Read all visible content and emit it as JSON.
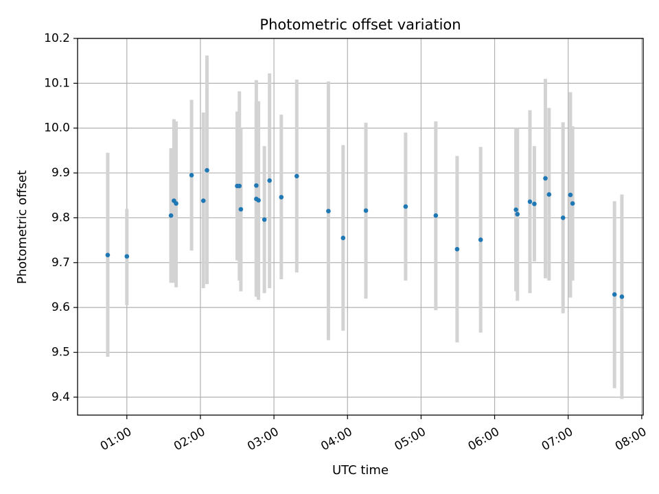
{
  "chart_data": {
    "type": "scatter",
    "title": "Photometric offset variation",
    "xlabel": "UTC time",
    "ylabel": "Photometric offset",
    "xlim_hours": [
      0.33,
      8.02
    ],
    "ylim": [
      9.36,
      10.2
    ],
    "x_ticks": [
      {
        "value": 1,
        "label": "01:00"
      },
      {
        "value": 2,
        "label": "02:00"
      },
      {
        "value": 3,
        "label": "03:00"
      },
      {
        "value": 4,
        "label": "04:00"
      },
      {
        "value": 5,
        "label": "05:00"
      },
      {
        "value": 6,
        "label": "06:00"
      },
      {
        "value": 7,
        "label": "07:00"
      },
      {
        "value": 8,
        "label": "08:00"
      }
    ],
    "y_ticks": [
      {
        "value": 9.4,
        "label": "9.4"
      },
      {
        "value": 9.5,
        "label": "9.5"
      },
      {
        "value": 9.6,
        "label": "9.6"
      },
      {
        "value": 9.7,
        "label": "9.7"
      },
      {
        "value": 9.8,
        "label": "9.8"
      },
      {
        "value": 9.9,
        "label": "9.9"
      },
      {
        "value": 10.0,
        "label": "10.0"
      },
      {
        "value": 10.1,
        "label": "10.1"
      },
      {
        "value": 10.2,
        "label": "10.2"
      }
    ],
    "grid": true,
    "point_color": "#1f77b4",
    "errorbar_color": "#d3d3d3",
    "grid_color": "#b0b0b0",
    "series": [
      {
        "name": "photometric offset",
        "points": [
          {
            "x": 0.74,
            "y": 9.717,
            "err_low": 9.49,
            "err_high": 9.945
          },
          {
            "x": 1.0,
            "y": 9.714,
            "err_low": 9.605,
            "err_high": 9.82
          },
          {
            "x": 1.6,
            "y": 9.805,
            "err_low": 9.655,
            "err_high": 9.955
          },
          {
            "x": 1.64,
            "y": 9.838,
            "err_low": 9.655,
            "err_high": 10.02
          },
          {
            "x": 1.67,
            "y": 9.832,
            "err_low": 9.645,
            "err_high": 10.015
          },
          {
            "x": 1.88,
            "y": 9.895,
            "err_low": 9.727,
            "err_high": 10.063
          },
          {
            "x": 2.04,
            "y": 9.838,
            "err_low": 9.643,
            "err_high": 10.035
          },
          {
            "x": 2.09,
            "y": 9.906,
            "err_low": 9.652,
            "err_high": 10.162
          },
          {
            "x": 2.5,
            "y": 9.871,
            "err_low": 9.705,
            "err_high": 10.037
          },
          {
            "x": 2.53,
            "y": 9.871,
            "err_low": 9.66,
            "err_high": 10.082
          },
          {
            "x": 2.55,
            "y": 9.819,
            "err_low": 9.636,
            "err_high": 10.0
          },
          {
            "x": 2.76,
            "y": 9.872,
            "err_low": 9.627,
            "err_high": 10.107
          },
          {
            "x": 2.76,
            "y": 9.842,
            "err_low": 9.624,
            "err_high": 10.06
          },
          {
            "x": 2.79,
            "y": 9.839,
            "err_low": 9.617,
            "err_high": 10.06
          },
          {
            "x": 2.87,
            "y": 9.796,
            "err_low": 9.632,
            "err_high": 9.96
          },
          {
            "x": 2.94,
            "y": 9.883,
            "err_low": 9.643,
            "err_high": 10.122
          },
          {
            "x": 3.1,
            "y": 9.846,
            "err_low": 9.663,
            "err_high": 10.03
          },
          {
            "x": 3.31,
            "y": 9.893,
            "err_low": 9.678,
            "err_high": 10.108
          },
          {
            "x": 3.74,
            "y": 9.815,
            "err_low": 9.527,
            "err_high": 10.104
          },
          {
            "x": 3.94,
            "y": 9.755,
            "err_low": 9.548,
            "err_high": 9.962
          },
          {
            "x": 4.25,
            "y": 9.816,
            "err_low": 9.62,
            "err_high": 10.012
          },
          {
            "x": 4.79,
            "y": 9.825,
            "err_low": 9.66,
            "err_high": 9.99
          },
          {
            "x": 5.2,
            "y": 9.805,
            "err_low": 9.594,
            "err_high": 10.015
          },
          {
            "x": 5.49,
            "y": 9.73,
            "err_low": 9.522,
            "err_high": 9.938
          },
          {
            "x": 5.81,
            "y": 9.751,
            "err_low": 9.544,
            "err_high": 9.958
          },
          {
            "x": 6.29,
            "y": 9.818,
            "err_low": 9.636,
            "err_high": 10.0
          },
          {
            "x": 6.31,
            "y": 9.808,
            "err_low": 9.615,
            "err_high": 10.0
          },
          {
            "x": 6.48,
            "y": 9.836,
            "err_low": 9.632,
            "err_high": 10.04
          },
          {
            "x": 6.54,
            "y": 9.831,
            "err_low": 9.703,
            "err_high": 9.96
          },
          {
            "x": 6.69,
            "y": 9.888,
            "err_low": 9.665,
            "err_high": 10.11
          },
          {
            "x": 6.74,
            "y": 9.852,
            "err_low": 9.66,
            "err_high": 10.045
          },
          {
            "x": 6.93,
            "y": 9.8,
            "err_low": 9.587,
            "err_high": 10.013
          },
          {
            "x": 7.03,
            "y": 9.851,
            "err_low": 9.622,
            "err_high": 10.08
          },
          {
            "x": 7.06,
            "y": 9.832,
            "err_low": 9.66,
            "err_high": 10.004
          },
          {
            "x": 7.63,
            "y": 9.629,
            "err_low": 9.42,
            "err_high": 9.837
          },
          {
            "x": 7.73,
            "y": 9.624,
            "err_low": 9.396,
            "err_high": 9.852
          }
        ]
      }
    ]
  }
}
